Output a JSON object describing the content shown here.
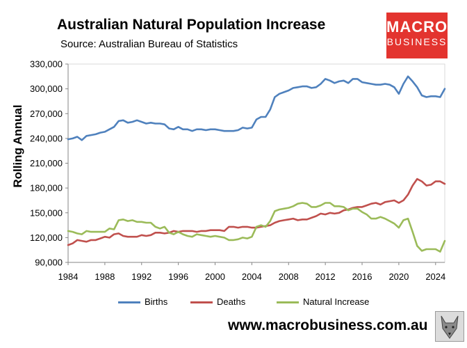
{
  "chart_data": {
    "type": "line",
    "title": "Australian Natural Population Increase",
    "subtitle": "Source: Australian Bureau of Statistics",
    "ylabel": "Rolling Annual",
    "xlabel": "",
    "xlim": [
      1984,
      2025
    ],
    "ylim": [
      90000,
      330000
    ],
    "xticks": [
      "1984",
      "1988",
      "1992",
      "1996",
      "2000",
      "2004",
      "2008",
      "2012",
      "2016",
      "2020",
      "2024"
    ],
    "yticks": [
      "90,000",
      "120,000",
      "150,000",
      "180,000",
      "210,000",
      "240,000",
      "270,000",
      "300,000",
      "330,000"
    ],
    "grid": "none",
    "legend_position": "bottom",
    "series": [
      {
        "name": "Births",
        "color": "#4f81bd",
        "x": [
          1984,
          1984.5,
          1985,
          1985.5,
          1986,
          1986.5,
          1987,
          1987.5,
          1988,
          1988.5,
          1989,
          1989.5,
          1990,
          1990.5,
          1991,
          1991.5,
          1992,
          1992.5,
          1993,
          1993.5,
          1994,
          1994.5,
          1995,
          1995.5,
          1996,
          1996.5,
          1997,
          1997.5,
          1998,
          1998.5,
          1999,
          1999.5,
          2000,
          2000.5,
          2001,
          2001.5,
          2002,
          2002.5,
          2003,
          2003.5,
          2004,
          2004.5,
          2005,
          2005.5,
          2006,
          2006.5,
          2007,
          2007.5,
          2008,
          2008.5,
          2009,
          2009.5,
          2010,
          2010.5,
          2011,
          2011.5,
          2012,
          2012.5,
          2013,
          2013.5,
          2014,
          2014.5,
          2015,
          2015.5,
          2016,
          2016.5,
          2017,
          2017.5,
          2018,
          2018.5,
          2019,
          2019.5,
          2020,
          2020.5,
          2021,
          2021.5,
          2022,
          2022.5,
          2023,
          2023.5,
          2024,
          2024.5,
          2025
        ],
        "values": [
          239000,
          240000,
          242000,
          238000,
          243000,
          244000,
          245000,
          247000,
          248000,
          251000,
          254000,
          261000,
          262000,
          259000,
          260000,
          262000,
          260000,
          258000,
          259000,
          258000,
          258000,
          257000,
          252000,
          251000,
          254000,
          251000,
          251000,
          249000,
          251000,
          251000,
          250000,
          251000,
          251000,
          250000,
          249000,
          249000,
          249000,
          250000,
          253000,
          252000,
          253000,
          263000,
          266000,
          266000,
          275000,
          290000,
          294000,
          296000,
          298000,
          301000,
          302000,
          303000,
          303000,
          301000,
          302000,
          306000,
          312000,
          310000,
          307000,
          309000,
          310000,
          307000,
          312000,
          312000,
          308000,
          307000,
          306000,
          305000,
          305000,
          306000,
          305000,
          302000,
          294000,
          306000,
          315000,
          309000,
          302000,
          292000,
          290000,
          291000,
          291000,
          290000,
          300000
        ]
      },
      {
        "name": "Deaths",
        "color": "#c0504d",
        "x": [
          1984,
          1984.5,
          1985,
          1985.5,
          1986,
          1986.5,
          1987,
          1987.5,
          1988,
          1988.5,
          1989,
          1989.5,
          1990,
          1990.5,
          1991,
          1991.5,
          1992,
          1992.5,
          1993,
          1993.5,
          1994,
          1994.5,
          1995,
          1995.5,
          1996,
          1996.5,
          1997,
          1997.5,
          1998,
          1998.5,
          1999,
          1999.5,
          2000,
          2000.5,
          2001,
          2001.5,
          2002,
          2002.5,
          2003,
          2003.5,
          2004,
          2004.5,
          2005,
          2005.5,
          2006,
          2006.5,
          2007,
          2007.5,
          2008,
          2008.5,
          2009,
          2009.5,
          2010,
          2010.5,
          2011,
          2011.5,
          2012,
          2012.5,
          2013,
          2013.5,
          2014,
          2014.5,
          2015,
          2015.5,
          2016,
          2016.5,
          2017,
          2017.5,
          2018,
          2018.5,
          2019,
          2019.5,
          2020,
          2020.5,
          2021,
          2021.5,
          2022,
          2022.5,
          2023,
          2023.5,
          2024,
          2024.5,
          2025
        ],
        "values": [
          111000,
          113000,
          117000,
          116000,
          115000,
          117000,
          117000,
          119000,
          121000,
          120000,
          124000,
          125000,
          122000,
          121000,
          121000,
          121000,
          123000,
          122000,
          123000,
          126000,
          126000,
          125000,
          126000,
          128000,
          127000,
          128000,
          128000,
          128000,
          127000,
          128000,
          128000,
          129000,
          129000,
          129000,
          128000,
          133000,
          133000,
          132000,
          133000,
          133000,
          132000,
          132000,
          133000,
          134000,
          135000,
          138000,
          140000,
          141000,
          142000,
          143000,
          141000,
          142000,
          142000,
          144000,
          146000,
          149000,
          148000,
          150000,
          149000,
          150000,
          153000,
          154000,
          156000,
          157000,
          157000,
          159000,
          161000,
          162000,
          160000,
          163000,
          164000,
          165000,
          162000,
          165000,
          172000,
          183000,
          191000,
          188000,
          183000,
          184000,
          188000,
          188000,
          185000
        ]
      },
      {
        "name": "Natural Increase",
        "color": "#9bbb59",
        "x": [
          1984,
          1984.5,
          1985,
          1985.5,
          1986,
          1986.5,
          1987,
          1987.5,
          1988,
          1988.5,
          1989,
          1989.5,
          1990,
          1990.5,
          1991,
          1991.5,
          1992,
          1992.5,
          1993,
          1993.5,
          1994,
          1994.5,
          1995,
          1995.5,
          1996,
          1996.5,
          1997,
          1997.5,
          1998,
          1998.5,
          1999,
          1999.5,
          2000,
          2000.5,
          2001,
          2001.5,
          2002,
          2002.5,
          2003,
          2003.5,
          2004,
          2004.5,
          2005,
          2005.5,
          2006,
          2006.5,
          2007,
          2007.5,
          2008,
          2008.5,
          2009,
          2009.5,
          2010,
          2010.5,
          2011,
          2011.5,
          2012,
          2012.5,
          2013,
          2013.5,
          2014,
          2014.5,
          2015,
          2015.5,
          2016,
          2016.5,
          2017,
          2017.5,
          2018,
          2018.5,
          2019,
          2019.5,
          2020,
          2020.5,
          2021,
          2021.5,
          2022,
          2022.5,
          2023,
          2023.5,
          2024,
          2024.5,
          2025
        ],
        "values": [
          128000,
          127000,
          125000,
          124000,
          128000,
          127000,
          127000,
          127000,
          127000,
          131000,
          130000,
          141000,
          142000,
          140000,
          141000,
          139000,
          139000,
          138000,
          138000,
          133000,
          131000,
          133000,
          126000,
          124000,
          127000,
          124000,
          122000,
          121000,
          124000,
          123000,
          122000,
          121000,
          122000,
          121000,
          120000,
          117000,
          117000,
          118000,
          120000,
          119000,
          121000,
          133000,
          135000,
          133000,
          140000,
          152000,
          154000,
          155000,
          156000,
          158000,
          161000,
          162000,
          161000,
          157000,
          157000,
          159000,
          162000,
          162000,
          158000,
          158000,
          157000,
          153000,
          155000,
          155000,
          151000,
          148000,
          143000,
          143000,
          145000,
          143000,
          140000,
          137000,
          132000,
          141000,
          143000,
          127000,
          110000,
          104000,
          106000,
          106000,
          106000,
          103000,
          116000
        ]
      }
    ]
  },
  "logo": {
    "line1": "MACRO",
    "line2": "BUSINESS"
  },
  "website": "www.macrobusiness.com.au"
}
